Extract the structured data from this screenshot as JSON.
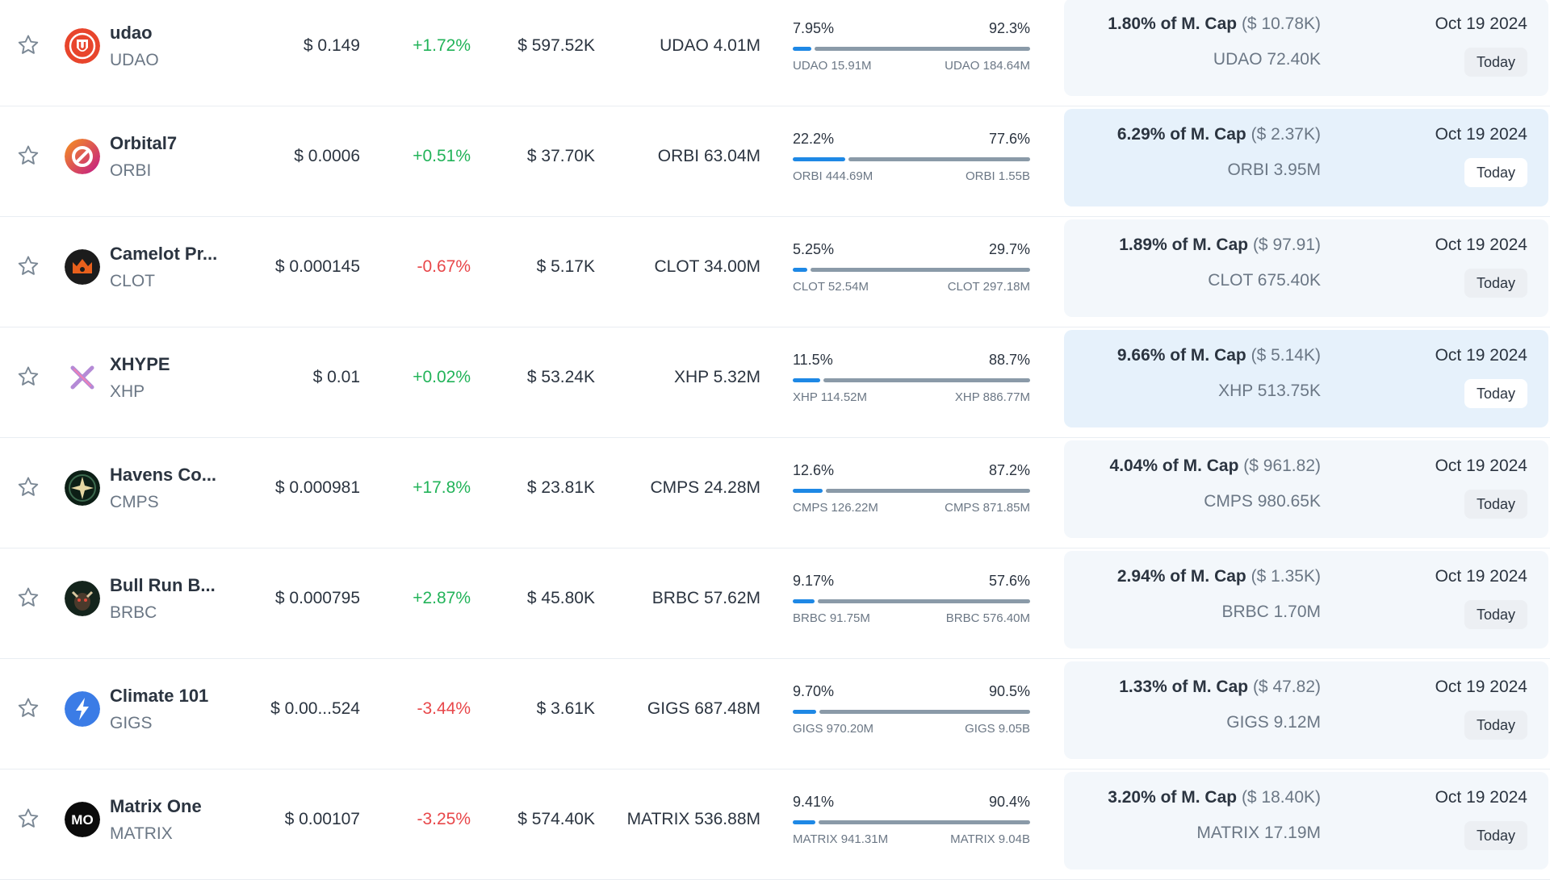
{
  "labels": {
    "mcap_suffix": "of M. Cap",
    "today": "Today"
  },
  "colors": {
    "positive": "#22b359",
    "negative": "#e8474a",
    "accent": "#1e88e5"
  },
  "rows": [
    {
      "name": "udao",
      "symbol": "UDAO",
      "logo": "udao-logo",
      "price": "$ 0.149",
      "change": "+1.72%",
      "change_dir": "pos",
      "liquidity": "$ 597.52K",
      "volume": "UDAO 4.01M",
      "left_pct": "7.95%",
      "right_pct": "92.3%",
      "progress": 0.0795,
      "left_amt": "UDAO 15.91M",
      "right_amt": "UDAO 184.64M",
      "mcap_pct": "1.80%",
      "mcap_value": "($ 10.78K)",
      "locked": "UDAO 72.40K",
      "date": "Oct 19 2024",
      "highlight": false
    },
    {
      "name": "Orbital7",
      "symbol": "ORBI",
      "logo": "orbital7-logo",
      "price": "$ 0.0006",
      "change": "+0.51%",
      "change_dir": "pos",
      "liquidity": "$ 37.70K",
      "volume": "ORBI 63.04M",
      "left_pct": "22.2%",
      "right_pct": "77.6%",
      "progress": 0.222,
      "left_amt": "ORBI 444.69M",
      "right_amt": "ORBI 1.55B",
      "mcap_pct": "6.29%",
      "mcap_value": "($ 2.37K)",
      "locked": "ORBI 3.95M",
      "date": "Oct 19 2024",
      "highlight": true
    },
    {
      "name": "Camelot Pr...",
      "symbol": "CLOT",
      "logo": "camelot-logo",
      "price": "$ 0.000145",
      "change": "-0.67%",
      "change_dir": "neg",
      "liquidity": "$ 5.17K",
      "volume": "CLOT 34.00M",
      "left_pct": "5.25%",
      "right_pct": "29.7%",
      "progress": 0.0525,
      "left_amt": "CLOT 52.54M",
      "right_amt": "CLOT 297.18M",
      "mcap_pct": "1.89%",
      "mcap_value": "($ 97.91)",
      "locked": "CLOT 675.40K",
      "date": "Oct 19 2024",
      "highlight": false
    },
    {
      "name": "XHYPE",
      "symbol": "XHP",
      "logo": "xhype-logo",
      "price": "$ 0.01",
      "change": "+0.02%",
      "change_dir": "pos",
      "liquidity": "$ 53.24K",
      "volume": "XHP 5.32M",
      "left_pct": "11.5%",
      "right_pct": "88.7%",
      "progress": 0.115,
      "left_amt": "XHP 114.52M",
      "right_amt": "XHP 886.77M",
      "mcap_pct": "9.66%",
      "mcap_value": "($ 5.14K)",
      "locked": "XHP 513.75K",
      "date": "Oct 19 2024",
      "highlight": true
    },
    {
      "name": "Havens Co...",
      "symbol": "CMPS",
      "logo": "havens-logo",
      "price": "$ 0.000981",
      "change": "+17.8%",
      "change_dir": "pos",
      "liquidity": "$ 23.81K",
      "volume": "CMPS 24.28M",
      "left_pct": "12.6%",
      "right_pct": "87.2%",
      "progress": 0.126,
      "left_amt": "CMPS 126.22M",
      "right_amt": "CMPS 871.85M",
      "mcap_pct": "4.04%",
      "mcap_value": "($ 961.82)",
      "locked": "CMPS 980.65K",
      "date": "Oct 19 2024",
      "highlight": false
    },
    {
      "name": "Bull Run B...",
      "symbol": "BRBC",
      "logo": "bullrun-logo",
      "price": "$ 0.000795",
      "change": "+2.87%",
      "change_dir": "pos",
      "liquidity": "$ 45.80K",
      "volume": "BRBC 57.62M",
      "left_pct": "9.17%",
      "right_pct": "57.6%",
      "progress": 0.0917,
      "left_amt": "BRBC 91.75M",
      "right_amt": "BRBC 576.40M",
      "mcap_pct": "2.94%",
      "mcap_value": "($ 1.35K)",
      "locked": "BRBC 1.70M",
      "date": "Oct 19 2024",
      "highlight": false
    },
    {
      "name": "Climate 101",
      "symbol": "GIGS",
      "logo": "climate-logo",
      "price": "$ 0.00...524",
      "change": "-3.44%",
      "change_dir": "neg",
      "liquidity": "$ 3.61K",
      "volume": "GIGS 687.48M",
      "left_pct": "9.70%",
      "right_pct": "90.5%",
      "progress": 0.097,
      "left_amt": "GIGS 970.20M",
      "right_amt": "GIGS 9.05B",
      "mcap_pct": "1.33%",
      "mcap_value": "($ 47.82)",
      "locked": "GIGS 9.12M",
      "date": "Oct 19 2024",
      "highlight": false
    },
    {
      "name": "Matrix One",
      "symbol": "MATRIX",
      "logo": "matrix-logo",
      "logo_text": "MO",
      "price": "$ 0.00107",
      "change": "-3.25%",
      "change_dir": "neg",
      "liquidity": "$ 574.40K",
      "volume": "MATRIX 536.88M",
      "left_pct": "9.41%",
      "right_pct": "90.4%",
      "progress": 0.0941,
      "left_amt": "MATRIX 941.31M",
      "right_amt": "MATRIX 9.04B",
      "mcap_pct": "3.20%",
      "mcap_value": "($ 18.40K)",
      "locked": "MATRIX 17.19M",
      "date": "Oct 19 2024",
      "highlight": false
    }
  ]
}
